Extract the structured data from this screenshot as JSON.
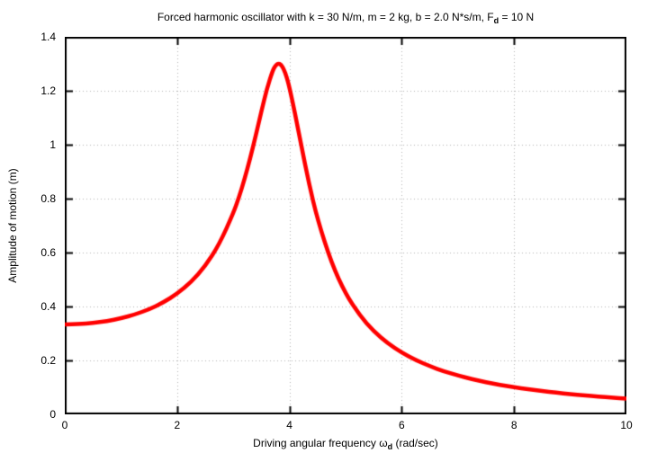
{
  "labels": {
    "title_prefix": "Forced harmonic oscillator with k = 30 N/m, m = 2 kg, b = 2.0 N*s/m, F",
    "title_sub": "d",
    "title_suffix": " = 10 N",
    "xlabel_prefix": "Driving angular frequency ω",
    "xlabel_sub": "d",
    "xlabel_suffix": " (rad/sec)",
    "ylabel": "Amplitude of motion (m)"
  },
  "chart_data": {
    "type": "line",
    "title": "Forced harmonic oscillator with k = 30 N/m, m = 2 kg, b = 2.0 N*s/m, F_d = 10 N",
    "xlabel": "Driving angular frequency ω_d (rad/sec)",
    "ylabel": "Amplitude of motion (m)",
    "xlim": [
      0,
      10
    ],
    "ylim": [
      0,
      1.4
    ],
    "x_ticks": [
      0,
      2,
      4,
      6,
      8,
      10
    ],
    "x_tick_labels": [
      "0",
      "2",
      "4",
      "6",
      "8",
      "10"
    ],
    "y_ticks": [
      0,
      0.2,
      0.4,
      0.6,
      0.8,
      1,
      1.2,
      1.4
    ],
    "y_tick_labels": [
      "0",
      "0.2",
      "0.4",
      "0.6",
      "0.8",
      "1",
      "1.2",
      "1.4"
    ],
    "grid": true,
    "grid_style": "dotted",
    "grid_color": "#b3b3b3",
    "border_color": "#000000",
    "background_color": "#ffffff",
    "legend": "none",
    "tick_length": 7,
    "series": [
      {
        "name": "Amplitude of motion",
        "color": "#ff0000",
        "line_width": 4.5,
        "points": [
          [
            0,
            0.3333
          ],
          [
            0.25,
            0.3347
          ],
          [
            0.5,
            0.3388
          ],
          [
            0.75,
            0.3459
          ],
          [
            1,
            0.3562
          ],
          [
            1.25,
            0.3705
          ],
          [
            1.5,
            0.3895
          ],
          [
            1.75,
            0.4144
          ],
          [
            2,
            0.4472
          ],
          [
            2.25,
            0.4907
          ],
          [
            2.5,
            0.5495
          ],
          [
            2.75,
            0.6306
          ],
          [
            3,
            0.7454
          ],
          [
            3.1,
            0.8041
          ],
          [
            3.2,
            0.8717
          ],
          [
            3.3,
            0.9486
          ],
          [
            3.4,
            1.0338
          ],
          [
            3.5,
            1.1233
          ],
          [
            3.6,
            1.2083
          ],
          [
            3.7,
            1.2739
          ],
          [
            3.75,
            1.2935
          ],
          [
            3.8,
            1.3017
          ],
          [
            3.85,
            1.2973
          ],
          [
            3.9,
            1.2802
          ],
          [
            3.95,
            1.2513
          ],
          [
            4,
            1.2127
          ],
          [
            4.1,
            1.1156
          ],
          [
            4.2,
            1.0079
          ],
          [
            4.35,
            0.8536
          ],
          [
            4.5,
            0.7231
          ],
          [
            4.75,
            0.5599
          ],
          [
            5,
            0.4472
          ],
          [
            5.25,
            0.3672
          ],
          [
            5.5,
            0.3084
          ],
          [
            5.75,
            0.2638
          ],
          [
            6,
            0.2289
          ],
          [
            6.25,
            0.2011
          ],
          [
            6.5,
            0.1785
          ],
          [
            6.75,
            0.1597
          ],
          [
            7,
            0.144
          ],
          [
            7.25,
            0.1307
          ],
          [
            7.5,
            0.1193
          ],
          [
            7.75,
            0.1094
          ],
          [
            8,
            0.1007
          ],
          [
            8.25,
            0.0931
          ],
          [
            8.5,
            0.0864
          ],
          [
            8.75,
            0.0804
          ],
          [
            9,
            0.0751
          ],
          [
            9.25,
            0.0703
          ],
          [
            9.5,
            0.0659
          ],
          [
            9.75,
            0.062
          ],
          [
            10,
            0.0584
          ]
        ]
      }
    ]
  }
}
